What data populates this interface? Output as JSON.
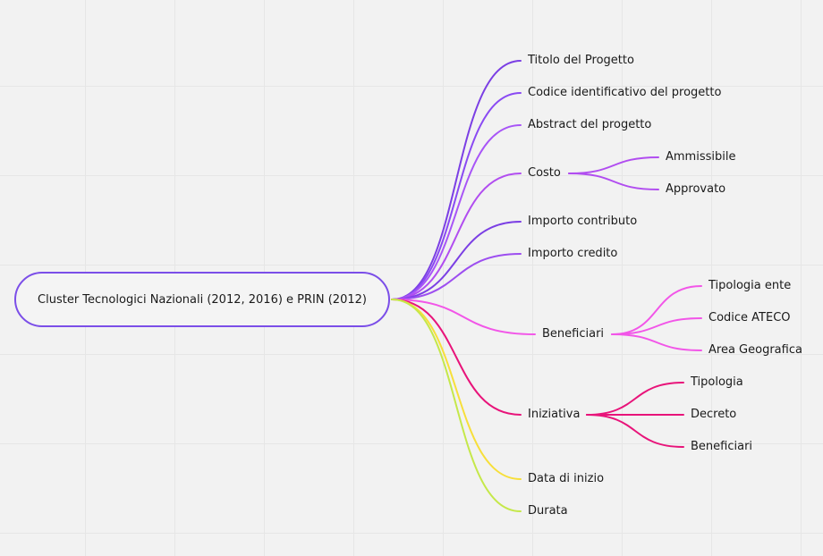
{
  "mindmap": {
    "root": "Cluster Tecnologici Nazionali (2012, 2016) e PRIN (2012)",
    "branches": [
      {
        "id": "titolo",
        "label": "Titolo del Progetto",
        "color": "#7b3fe4",
        "children": []
      },
      {
        "id": "codice",
        "label": "Codice identificativo del progetto",
        "color": "#8a4af3",
        "children": []
      },
      {
        "id": "abstract",
        "label": "Abstract del progetto",
        "color": "#a855f7",
        "children": []
      },
      {
        "id": "costo",
        "label": "Costo",
        "color": "#b14df0",
        "children": [
          "Ammissibile",
          "Approvato"
        ]
      },
      {
        "id": "importo-contributo",
        "label": "Importo contributo",
        "color": "#7b3fe4",
        "children": []
      },
      {
        "id": "importo-credito",
        "label": "Importo credito",
        "color": "#9d4ef0",
        "children": []
      },
      {
        "id": "beneficiari",
        "label": "Beneficiari",
        "color": "#f256e8",
        "children": [
          "Tipologia ente",
          "Codice ATECO",
          "Area Geografica"
        ]
      },
      {
        "id": "iniziativa",
        "label": "Iniziativa",
        "color": "#e8147a",
        "children": [
          "Tipologia",
          "Decreto",
          "Beneficiari"
        ]
      },
      {
        "id": "data-inizio",
        "label": "Data di inizio",
        "color": "#f7df3a",
        "children": []
      },
      {
        "id": "durata",
        "label": "Durata",
        "color": "#c5e84a",
        "children": []
      }
    ]
  }
}
